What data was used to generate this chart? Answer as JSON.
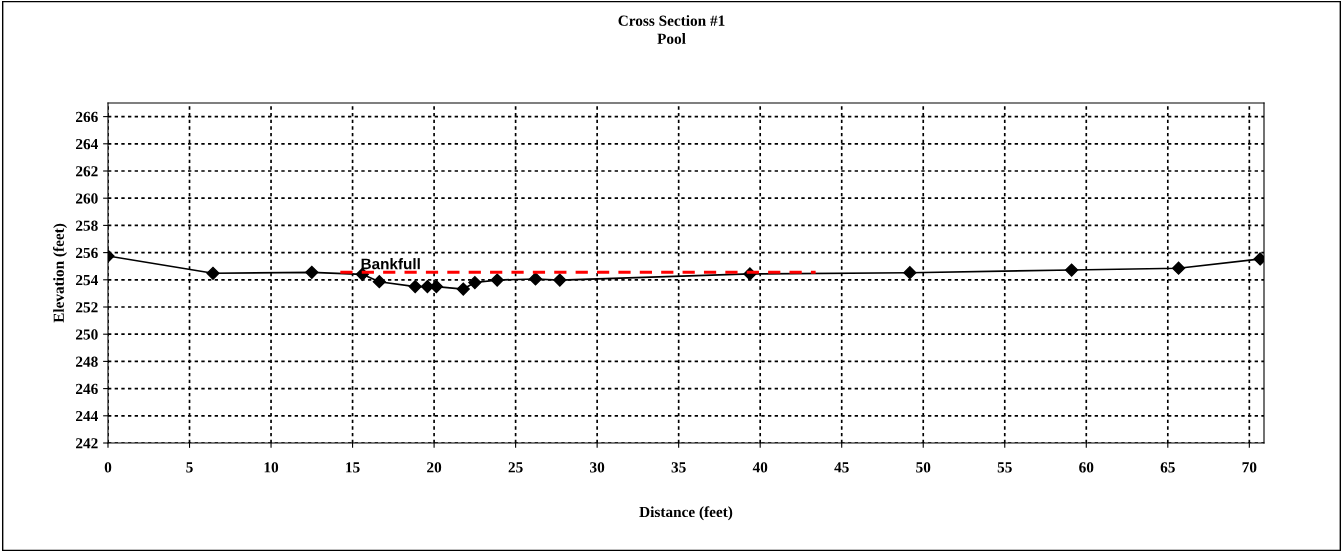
{
  "chart_data": {
    "type": "line",
    "title": "Cross Section #1",
    "subtitle": "Pool",
    "xlabel": "Distance (feet)",
    "ylabel": "Elevation (feet)",
    "series": [
      {
        "color": "#000000",
        "marker": "diamond",
        "line_style": "solid",
        "x": [
          0,
          6.44,
          12.5,
          15.6,
          16.64,
          18.84,
          19.59,
          20.14,
          21.79,
          22.5,
          23.87,
          26.22,
          27.71,
          39.37,
          49.18,
          59.1,
          65.66,
          70.66
        ],
        "values": [
          255.75,
          254.48,
          254.55,
          254.4,
          253.86,
          253.5,
          253.5,
          253.5,
          253.32,
          253.8,
          253.98,
          254.06,
          253.98,
          254.43,
          254.52,
          254.72,
          254.85,
          255.53
        ]
      },
      {
        "name": "Bankfull",
        "color": "#ff0000",
        "marker": "none",
        "line_style": "dashed",
        "x": [
          14.25,
          43.4
        ],
        "values": [
          254.55,
          254.55
        ]
      }
    ],
    "xlim": [
      0,
      70.9
    ],
    "xticks": [
      0,
      5,
      10,
      15,
      20,
      25,
      30,
      35,
      40,
      45,
      50,
      55,
      60,
      65,
      70
    ],
    "ylim": [
      242,
      267
    ],
    "yticks": [
      242,
      244,
      246,
      248,
      250,
      252,
      254,
      256,
      258,
      260,
      262,
      264,
      266
    ],
    "grid": true,
    "legend": false
  }
}
